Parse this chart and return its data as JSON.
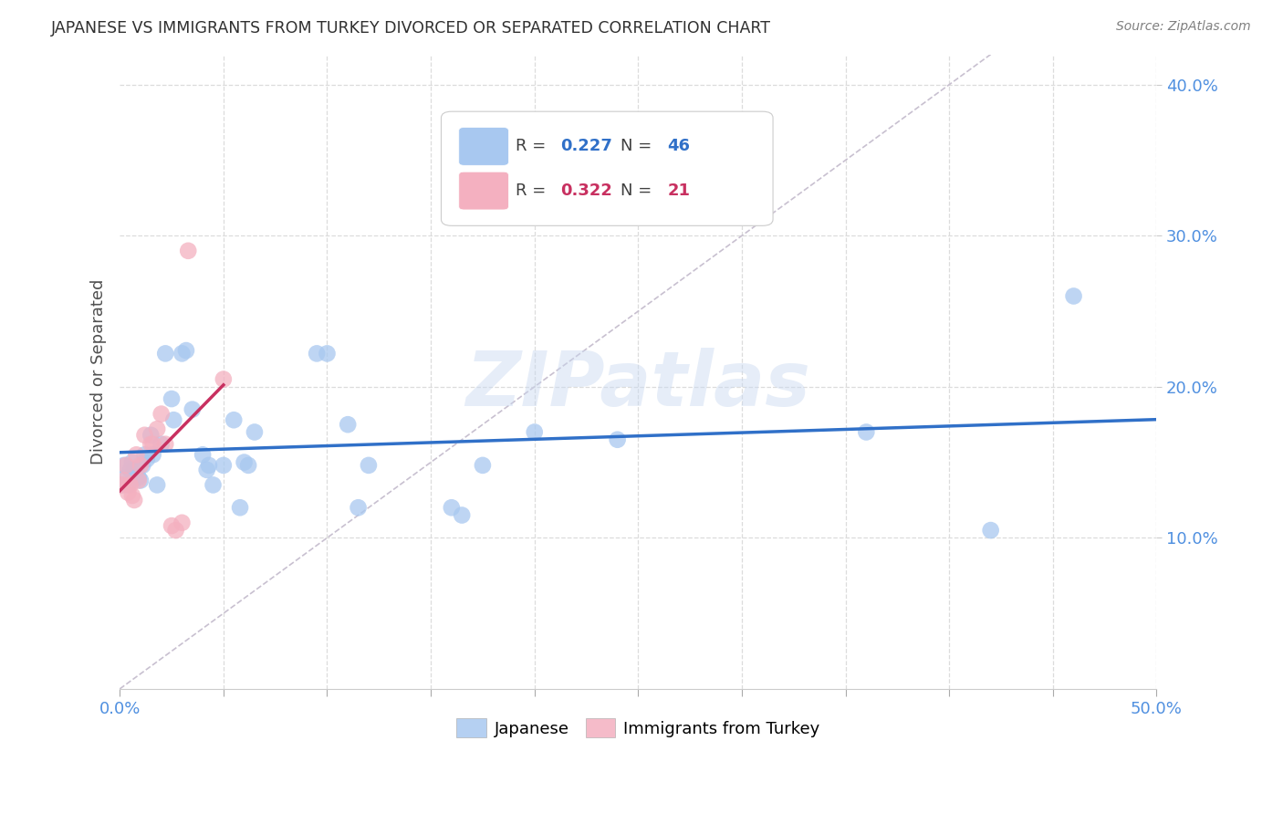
{
  "title": "JAPANESE VS IMMIGRANTS FROM TURKEY DIVORCED OR SEPARATED CORRELATION CHART",
  "source": "Source: ZipAtlas.com",
  "ylabel_label": "Divorced or Separated",
  "xlim": [
    0.0,
    0.5
  ],
  "ylim": [
    0.0,
    0.42
  ],
  "xticks": [
    0.0,
    0.05,
    0.1,
    0.15,
    0.2,
    0.25,
    0.3,
    0.35,
    0.4,
    0.45,
    0.5
  ],
  "yticks": [
    0.1,
    0.2,
    0.3,
    0.4
  ],
  "xtick_labels_visible": [
    "0.0%",
    "50.0%"
  ],
  "ytick_labels": [
    "10.0%",
    "20.0%",
    "30.0%",
    "40.0%"
  ],
  "legend1_R": "0.227",
  "legend1_N": "46",
  "legend2_R": "0.322",
  "legend2_N": "21",
  "japanese_color": "#A8C8F0",
  "turkey_color": "#F4B0C0",
  "japanese_line_color": "#3070C8",
  "turkey_line_color": "#C83060",
  "diagonal_color": "#C8C0D0",
  "watermark_text": "ZIPatlas",
  "japanese_points": [
    [
      0.001,
      0.135
    ],
    [
      0.002,
      0.148
    ],
    [
      0.003,
      0.14
    ],
    [
      0.004,
      0.135
    ],
    [
      0.005,
      0.145
    ],
    [
      0.006,
      0.15
    ],
    [
      0.007,
      0.145
    ],
    [
      0.008,
      0.145
    ],
    [
      0.009,
      0.14
    ],
    [
      0.01,
      0.138
    ],
    [
      0.011,
      0.148
    ],
    [
      0.012,
      0.155
    ],
    [
      0.013,
      0.152
    ],
    [
      0.015,
      0.168
    ],
    [
      0.016,
      0.155
    ],
    [
      0.018,
      0.135
    ],
    [
      0.02,
      0.162
    ],
    [
      0.022,
      0.222
    ],
    [
      0.025,
      0.192
    ],
    [
      0.026,
      0.178
    ],
    [
      0.03,
      0.222
    ],
    [
      0.032,
      0.224
    ],
    [
      0.035,
      0.185
    ],
    [
      0.04,
      0.155
    ],
    [
      0.042,
      0.145
    ],
    [
      0.043,
      0.148
    ],
    [
      0.045,
      0.135
    ],
    [
      0.05,
      0.148
    ],
    [
      0.055,
      0.178
    ],
    [
      0.058,
      0.12
    ],
    [
      0.06,
      0.15
    ],
    [
      0.062,
      0.148
    ],
    [
      0.065,
      0.17
    ],
    [
      0.095,
      0.222
    ],
    [
      0.1,
      0.222
    ],
    [
      0.11,
      0.175
    ],
    [
      0.115,
      0.12
    ],
    [
      0.12,
      0.148
    ],
    [
      0.16,
      0.12
    ],
    [
      0.165,
      0.115
    ],
    [
      0.175,
      0.148
    ],
    [
      0.2,
      0.17
    ],
    [
      0.24,
      0.165
    ],
    [
      0.36,
      0.17
    ],
    [
      0.42,
      0.105
    ],
    [
      0.46,
      0.26
    ]
  ],
  "turkey_points": [
    [
      0.001,
      0.135
    ],
    [
      0.002,
      0.138
    ],
    [
      0.003,
      0.148
    ],
    [
      0.004,
      0.13
    ],
    [
      0.005,
      0.135
    ],
    [
      0.006,
      0.128
    ],
    [
      0.007,
      0.125
    ],
    [
      0.008,
      0.155
    ],
    [
      0.009,
      0.138
    ],
    [
      0.01,
      0.148
    ],
    [
      0.012,
      0.168
    ],
    [
      0.015,
      0.162
    ],
    [
      0.016,
      0.162
    ],
    [
      0.018,
      0.172
    ],
    [
      0.02,
      0.182
    ],
    [
      0.022,
      0.162
    ],
    [
      0.025,
      0.108
    ],
    [
      0.027,
      0.105
    ],
    [
      0.03,
      0.11
    ],
    [
      0.033,
      0.29
    ],
    [
      0.05,
      0.205
    ]
  ],
  "background_color": "#FFFFFF",
  "grid_color": "#DCDCDC",
  "title_color": "#303030",
  "source_color": "#808080",
  "tick_color": "#5090E0",
  "axis_label_color": "#505050"
}
